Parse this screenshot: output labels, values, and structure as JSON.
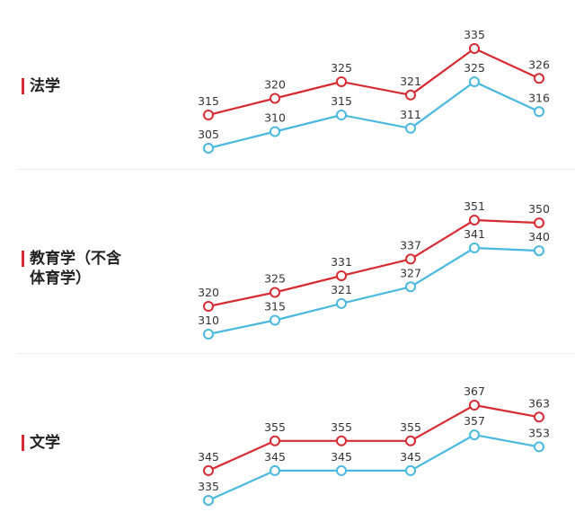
{
  "colors": {
    "series_upper": "#d62b32",
    "series_lower": "#4ab8df",
    "accent_bar": "#d62b32"
  },
  "chart_data": [
    {
      "type": "line",
      "title": "法学",
      "x": [
        1,
        2,
        3,
        4,
        5,
        6
      ],
      "series": [
        {
          "values": [
            315,
            320,
            325,
            321,
            335,
            326
          ],
          "color": "#d62b32"
        },
        {
          "values": [
            305,
            310,
            315,
            311,
            325,
            316
          ],
          "color": "#4ab8df"
        }
      ],
      "ylim": [
        300,
        340
      ],
      "grid": false
    },
    {
      "type": "line",
      "title": "教育学（不含\n体育学）",
      "x": [
        1,
        2,
        3,
        4,
        5,
        6
      ],
      "series": [
        {
          "values": [
            320,
            325,
            331,
            337,
            351,
            350
          ],
          "color": "#d62b32"
        },
        {
          "values": [
            310,
            315,
            321,
            327,
            341,
            340
          ],
          "color": "#4ab8df"
        }
      ],
      "ylim": [
        305,
        355
      ],
      "grid": false
    },
    {
      "type": "line",
      "title": "文学",
      "x": [
        1,
        2,
        3,
        4,
        5,
        6
      ],
      "series": [
        {
          "values": [
            345,
            355,
            355,
            355,
            367,
            363
          ],
          "color": "#d62b32"
        },
        {
          "values": [
            335,
            345,
            345,
            345,
            357,
            353
          ],
          "color": "#4ab8df"
        }
      ],
      "ylim": [
        330,
        370
      ],
      "grid": false
    }
  ]
}
